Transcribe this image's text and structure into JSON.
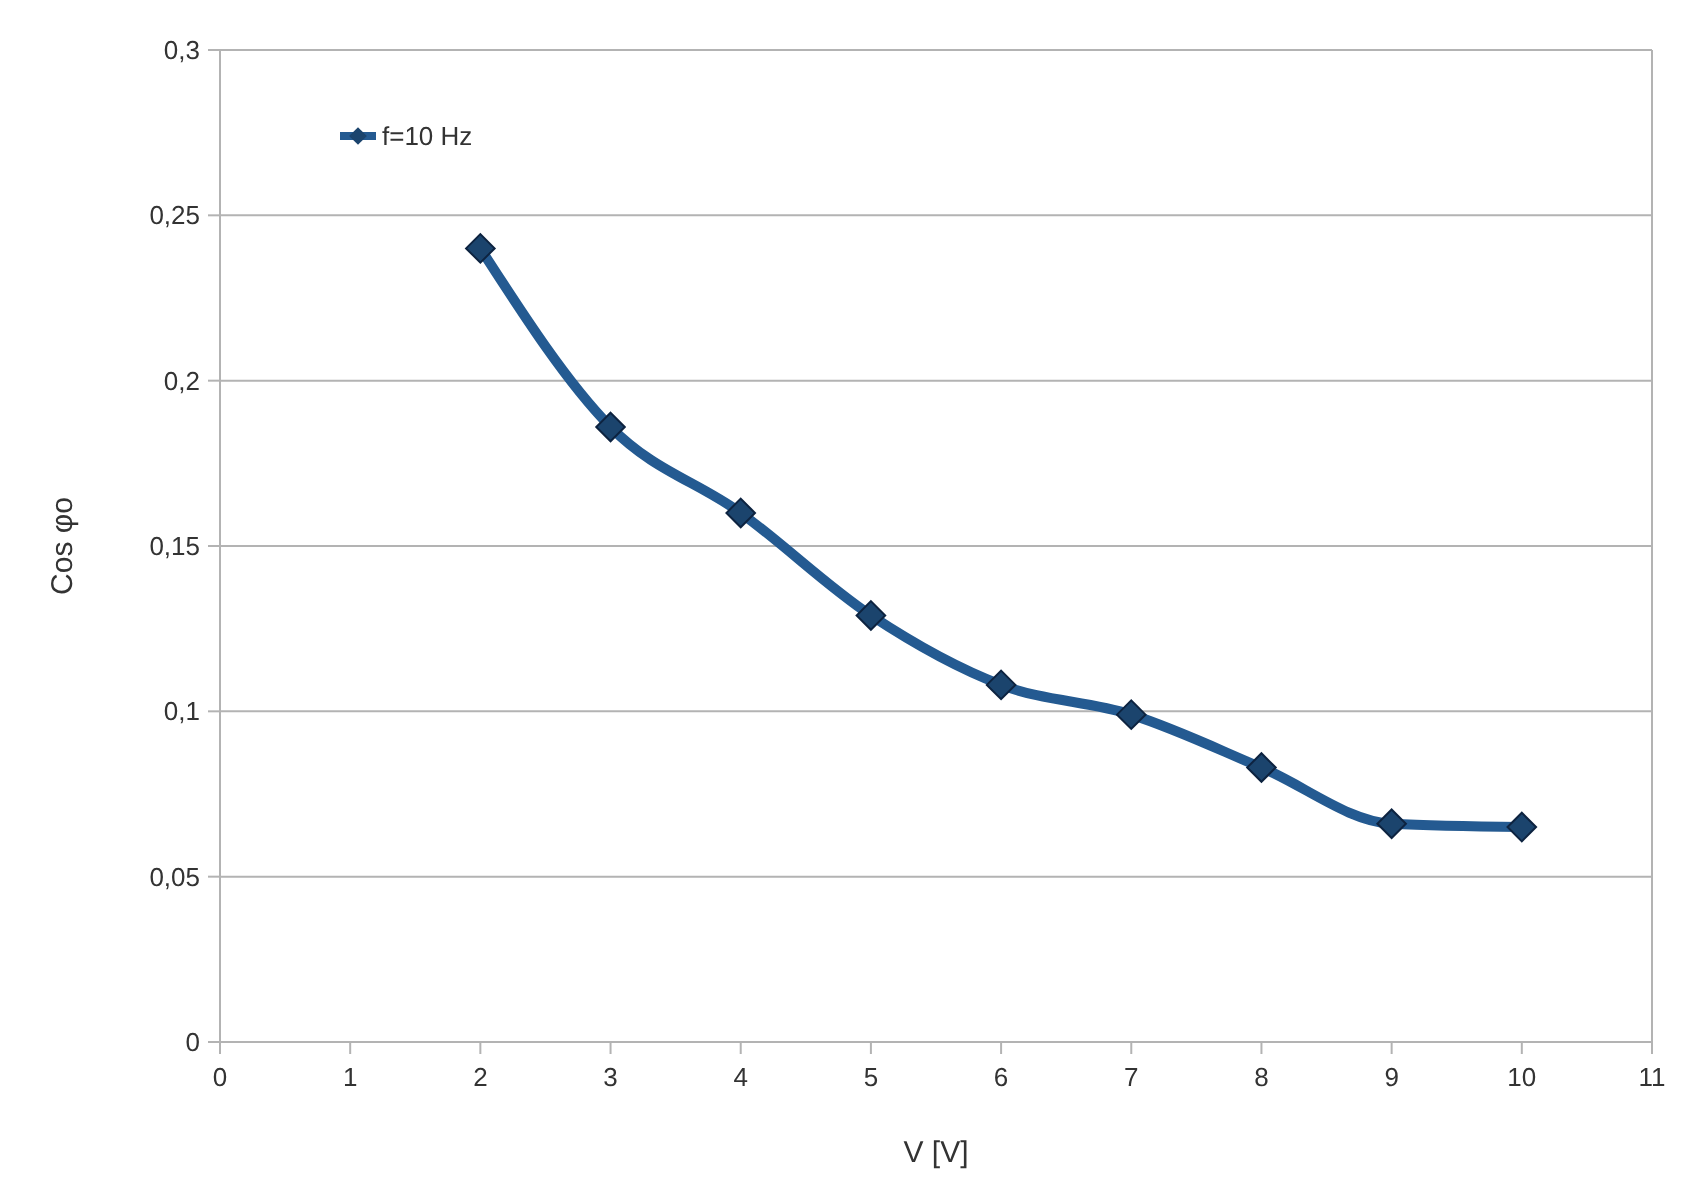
{
  "chart_data": {
    "type": "line",
    "xlabel": "V [V]",
    "ylabel": "Cos φo",
    "x": [
      2,
      3,
      4,
      5,
      6,
      7,
      8,
      9,
      10
    ],
    "series": [
      {
        "name": "f=10 Hz",
        "color": "#245a91",
        "values": [
          0.24,
          0.186,
          0.16,
          0.129,
          0.108,
          0.099,
          0.083,
          0.066,
          0.065
        ]
      }
    ],
    "xlim": [
      0,
      11
    ],
    "xticks": [
      0,
      1,
      2,
      3,
      4,
      5,
      6,
      7,
      8,
      9,
      10,
      11
    ],
    "ylim": [
      0,
      0.3
    ],
    "yticks": [
      0,
      {
        "value": 0.05,
        "label": "0,05"
      },
      {
        "value": 0.1,
        "label": "0,1"
      },
      {
        "value": 0.15,
        "label": "0,15"
      },
      {
        "value": 0.2,
        "label": "0,2"
      },
      {
        "value": 0.25,
        "label": "0,25"
      },
      {
        "value": 0.3,
        "label": "0,3"
      }
    ],
    "grid": "y",
    "legend": "top left",
    "marker": "diamond",
    "line_style": "solid"
  }
}
